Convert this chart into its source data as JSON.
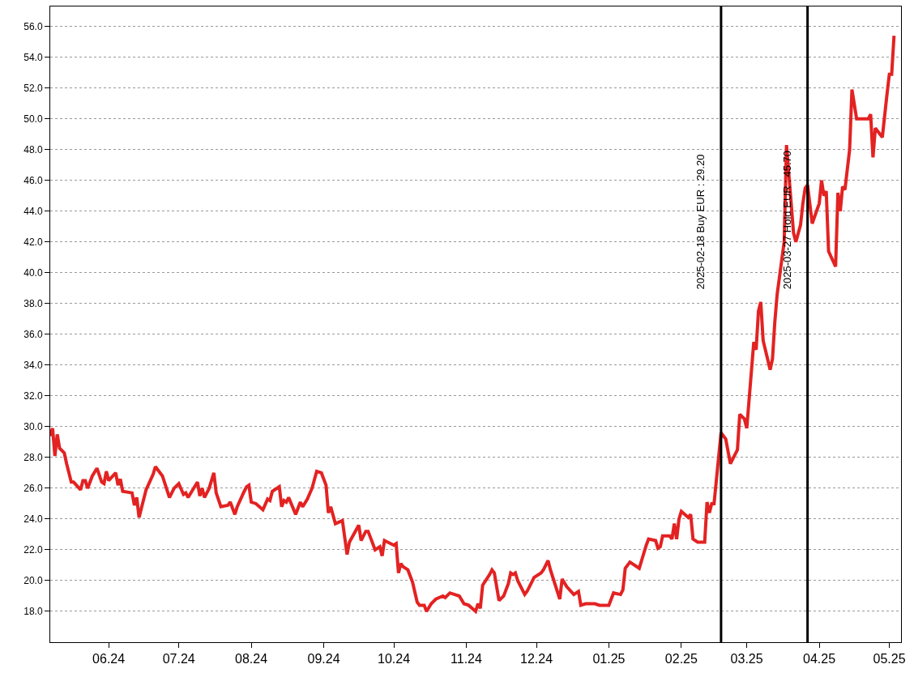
{
  "chart_data": {
    "type": "line",
    "x": [
      "2024-05-07",
      "2024-05-08",
      "2024-05-09",
      "2024-05-10",
      "2024-05-11",
      "2024-05-13",
      "2024-05-14",
      "2024-05-16",
      "2024-05-17",
      "2024-05-20",
      "2024-05-21",
      "2024-05-22",
      "2024-05-23",
      "2024-05-25",
      "2024-05-27",
      "2024-05-29",
      "2024-05-30",
      "2024-05-31",
      "2024-06-01",
      "2024-06-04",
      "2024-06-05",
      "2024-06-06",
      "2024-06-07",
      "2024-06-11",
      "2024-06-12",
      "2024-06-13",
      "2024-06-14",
      "2024-06-17",
      "2024-06-20",
      "2024-06-21",
      "2024-06-24",
      "2024-06-27",
      "2024-06-29",
      "2024-07-01",
      "2024-07-03",
      "2024-07-04",
      "2024-07-05",
      "2024-07-07",
      "2024-07-09",
      "2024-07-10",
      "2024-07-11",
      "2024-07-12",
      "2024-07-14",
      "2024-07-16",
      "2024-07-17",
      "2024-07-19",
      "2024-07-22",
      "2024-07-23",
      "2024-07-25",
      "2024-07-26",
      "2024-07-29",
      "2024-07-30",
      "2024-07-31",
      "2024-08-01",
      "2024-08-03",
      "2024-08-06",
      "2024-08-08",
      "2024-08-09",
      "2024-08-10",
      "2024-08-13",
      "2024-08-14",
      "2024-08-15",
      "2024-08-16",
      "2024-08-17",
      "2024-08-20",
      "2024-08-22",
      "2024-08-23",
      "2024-08-25",
      "2024-08-27",
      "2024-08-29",
      "2024-08-31",
      "2024-09-02",
      "2024-09-03",
      "2024-09-04",
      "2024-09-06",
      "2024-09-09",
      "2024-09-11",
      "2024-09-12",
      "2024-09-16",
      "2024-09-17",
      "2024-09-19",
      "2024-09-20",
      "2024-09-23",
      "2024-09-25",
      "2024-09-26",
      "2024-09-27",
      "2024-10-01",
      "2024-10-02",
      "2024-10-03",
      "2024-10-04",
      "2024-10-05",
      "2024-10-07",
      "2024-10-09",
      "2024-10-11",
      "2024-10-12",
      "2024-10-14",
      "2024-10-15",
      "2024-10-17",
      "2024-10-19",
      "2024-10-22",
      "2024-10-23",
      "2024-10-25",
      "2024-10-27",
      "2024-10-29",
      "2024-10-31",
      "2024-11-02",
      "2024-11-05",
      "2024-11-06",
      "2024-11-07",
      "2024-11-08",
      "2024-11-11",
      "2024-11-12",
      "2024-11-13",
      "2024-11-15",
      "2024-11-17",
      "2024-11-19",
      "2024-11-20",
      "2024-11-21",
      "2024-11-22",
      "2024-11-23",
      "2024-11-26",
      "2024-11-27",
      "2024-11-28",
      "2024-11-30",
      "2024-12-03",
      "2024-12-04",
      "2024-12-06",
      "2024-12-07",
      "2024-12-11",
      "2024-12-12",
      "2024-12-14",
      "2024-12-17",
      "2024-12-19",
      "2024-12-20",
      "2024-12-22",
      "2024-12-26",
      "2024-12-28",
      "2025-01-01",
      "2025-01-03",
      "2025-01-06",
      "2025-01-07",
      "2025-01-08",
      "2025-01-10",
      "2025-01-14",
      "2025-01-15",
      "2025-01-17",
      "2025-01-18",
      "2025-01-21",
      "2025-01-22",
      "2025-01-23",
      "2025-01-24",
      "2025-01-27",
      "2025-01-28",
      "2025-01-29",
      "2025-01-30",
      "2025-01-31",
      "2025-02-01",
      "2025-02-04",
      "2025-02-05",
      "2025-02-06",
      "2025-02-08",
      "2025-02-11",
      "2025-02-12",
      "2025-02-13",
      "2025-02-14",
      "2025-02-15",
      "2025-02-18",
      "2025-02-20",
      "2025-02-22",
      "2025-02-24",
      "2025-02-25",
      "2025-02-26",
      "2025-02-28",
      "2025-03-01",
      "2025-03-04",
      "2025-03-05",
      "2025-03-06",
      "2025-03-07",
      "2025-03-08",
      "2025-03-11",
      "2025-03-12",
      "2025-03-13",
      "2025-03-14",
      "2025-03-17",
      "2025-03-18",
      "2025-03-20",
      "2025-03-21",
      "2025-03-22",
      "2025-03-24",
      "2025-03-25",
      "2025-03-26",
      "2025-03-27",
      "2025-03-29",
      "2025-04-01",
      "2025-04-02",
      "2025-04-03",
      "2025-04-04",
      "2025-04-05",
      "2025-04-08",
      "2025-04-09",
      "2025-04-10",
      "2025-04-11",
      "2025-04-12",
      "2025-04-14",
      "2025-04-15",
      "2025-04-17",
      "2025-04-22",
      "2025-04-23",
      "2025-04-24",
      "2025-04-25",
      "2025-04-28",
      "2025-04-30",
      "2025-05-01",
      "2025-05-02",
      "2025-05-03"
    ],
    "series": [
      {
        "color": "#e32222",
        "values": [
          29.4,
          29.9,
          28.1,
          29.5,
          28.6,
          28.3,
          27.6,
          26.4,
          26.4,
          25.9,
          26.5,
          26.5,
          26.0,
          26.8,
          27.3,
          26.4,
          26.3,
          27.1,
          26.5,
          27.0,
          26.2,
          26.6,
          25.8,
          25.7,
          24.9,
          25.4,
          24.1,
          25.9,
          26.9,
          27.4,
          26.8,
          25.4,
          26.0,
          26.3,
          25.6,
          25.7,
          25.4,
          25.9,
          26.4,
          25.5,
          26.0,
          25.4,
          26.0,
          27.0,
          25.7,
          24.8,
          24.9,
          25.1,
          24.3,
          24.8,
          25.8,
          26.1,
          26.2,
          25.1,
          25.0,
          24.6,
          25.3,
          25.2,
          25.8,
          26.1,
          24.8,
          25.2,
          25.1,
          25.4,
          24.3,
          25.1,
          24.8,
          25.3,
          26.0,
          27.1,
          27.0,
          26.2,
          24.4,
          24.8,
          23.7,
          23.9,
          21.7,
          22.5,
          23.6,
          22.6,
          23.2,
          23.2,
          22.0,
          22.2,
          21.6,
          22.6,
          22.3,
          22.4,
          20.5,
          21.1,
          20.9,
          20.7,
          19.9,
          18.6,
          18.4,
          18.4,
          18.0,
          18.5,
          18.8,
          19.0,
          18.9,
          19.2,
          19.1,
          19.0,
          18.5,
          18.4,
          18.0,
          18.5,
          18.2,
          19.7,
          20.4,
          20.7,
          20.5,
          18.7,
          19.0,
          19.8,
          20.5,
          20.4,
          20.5,
          20.0,
          19.1,
          19.3,
          19.6,
          20.2,
          20.5,
          20.7,
          21.3,
          20.7,
          18.8,
          20.1,
          19.6,
          19.1,
          19.3,
          18.4,
          18.5,
          18.5,
          18.4,
          18.4,
          19.2,
          19.1,
          19.4,
          20.8,
          21.2,
          20.8,
          21.3,
          22.3,
          22.7,
          22.6,
          22.1,
          22.2,
          22.9,
          22.9,
          22.7,
          23.7,
          22.7,
          24.0,
          24.5,
          24.1,
          24.3,
          22.7,
          22.5,
          22.5,
          25.1,
          24.4,
          25.0,
          25.0,
          29.6,
          29.2,
          27.6,
          28.2,
          28.5,
          30.8,
          30.5,
          29.9,
          35.5,
          35.0,
          37.5,
          38.1,
          35.6,
          33.7,
          34.4,
          36.8,
          38.6,
          42.0,
          48.3,
          44.5,
          42.6,
          42.0,
          43.1,
          44.5,
          45.5,
          45.7,
          43.2,
          44.5,
          46.0,
          45.0,
          45.3,
          41.4,
          40.4,
          45.2,
          44.0,
          45.6,
          45.4,
          48.0,
          51.9,
          50.0,
          50.0,
          50.3,
          47.5,
          49.4,
          48.8,
          51.6,
          52.9,
          52.9,
          55.4
        ]
      }
    ],
    "xlim": [
      "2024-05-07",
      "2025-05-06"
    ],
    "xticks": [
      {
        "value": "2024-06-01",
        "label": "06.24"
      },
      {
        "value": "2024-07-01",
        "label": "07.24"
      },
      {
        "value": "2024-08-01",
        "label": "08.24"
      },
      {
        "value": "2024-09-01",
        "label": "09.24"
      },
      {
        "value": "2024-10-01",
        "label": "10.24"
      },
      {
        "value": "2024-11-01",
        "label": "11.24"
      },
      {
        "value": "2024-12-01",
        "label": "12.24"
      },
      {
        "value": "2025-01-01",
        "label": "01.25"
      },
      {
        "value": "2025-02-01",
        "label": "02.25"
      },
      {
        "value": "2025-03-01",
        "label": "03.25"
      },
      {
        "value": "2025-04-01",
        "label": "04.25"
      },
      {
        "value": "2025-05-01",
        "label": "05.25"
      }
    ],
    "ylim": [
      16.0,
      57.3
    ],
    "yticks": [
      {
        "value": 18,
        "label": "18.0"
      },
      {
        "value": 20,
        "label": "20.0"
      },
      {
        "value": 22,
        "label": "22.0"
      },
      {
        "value": 24,
        "label": "24.0"
      },
      {
        "value": 26,
        "label": "26.0"
      },
      {
        "value": 28,
        "label": "28.0"
      },
      {
        "value": 30,
        "label": "30.0"
      },
      {
        "value": 32,
        "label": "32.0"
      },
      {
        "value": 34,
        "label": "34.0"
      },
      {
        "value": 36,
        "label": "36.0"
      },
      {
        "value": 38,
        "label": "38.0"
      },
      {
        "value": 40,
        "label": "40.0"
      },
      {
        "value": 42,
        "label": "42.0"
      },
      {
        "value": 44,
        "label": "44.0"
      },
      {
        "value": 46,
        "label": "46.0"
      },
      {
        "value": 48,
        "label": "48.0"
      },
      {
        "value": 50,
        "label": "50.0"
      },
      {
        "value": 52,
        "label": "52.0"
      },
      {
        "value": 54,
        "label": "54.0"
      },
      {
        "value": 56,
        "label": "56.0"
      }
    ],
    "ref_lines": [
      {
        "axis": "x",
        "value": "2025-02-18",
        "label": "2025-02-18 Buy EUR : 29.20",
        "color": "#000000"
      },
      {
        "axis": "x",
        "value": "2025-03-27",
        "label": "2025-03-27 Hold EUR : 45.70",
        "color": "#000000"
      }
    ],
    "grid": "y",
    "marker": "none",
    "line_style": "solid"
  }
}
